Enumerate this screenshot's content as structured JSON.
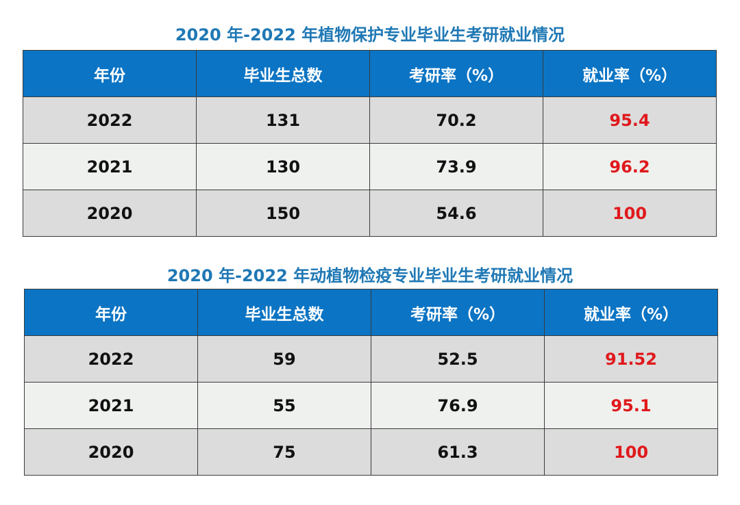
{
  "colors": {
    "title": "#1f78b4",
    "header_bg": "#0b74c4",
    "header_text": "#ffffff",
    "row_gray": "#dcdcdc",
    "row_light": "#eef1ee",
    "employment_text": "#e0191d"
  },
  "tables": [
    {
      "title": "2020 年-2022 年植物保护专业毕业生考研就业情况",
      "headers": [
        "年份",
        "毕业生总数",
        "考研率（%）",
        "就业率（%）"
      ],
      "rows": [
        {
          "year": "2022",
          "total": "131",
          "postgrad_rate": "70.2",
          "employment_rate": "95.4"
        },
        {
          "year": "2021",
          "total": "130",
          "postgrad_rate": "73.9",
          "employment_rate": "96.2"
        },
        {
          "year": "2020",
          "total": "150",
          "postgrad_rate": "54.6",
          "employment_rate": "100"
        }
      ]
    },
    {
      "title": "2020 年-2022 年动植物检疫专业毕业生考研就业情况",
      "headers": [
        "年份",
        "毕业生总数",
        "考研率（%）",
        "就业率（%）"
      ],
      "rows": [
        {
          "year": "2022",
          "total": "59",
          "postgrad_rate": "52.5",
          "employment_rate": "91.52"
        },
        {
          "year": "2021",
          "total": "55",
          "postgrad_rate": "76.9",
          "employment_rate": "95.1"
        },
        {
          "year": "2020",
          "total": "75",
          "postgrad_rate": "61.3",
          "employment_rate": "100"
        }
      ]
    }
  ]
}
